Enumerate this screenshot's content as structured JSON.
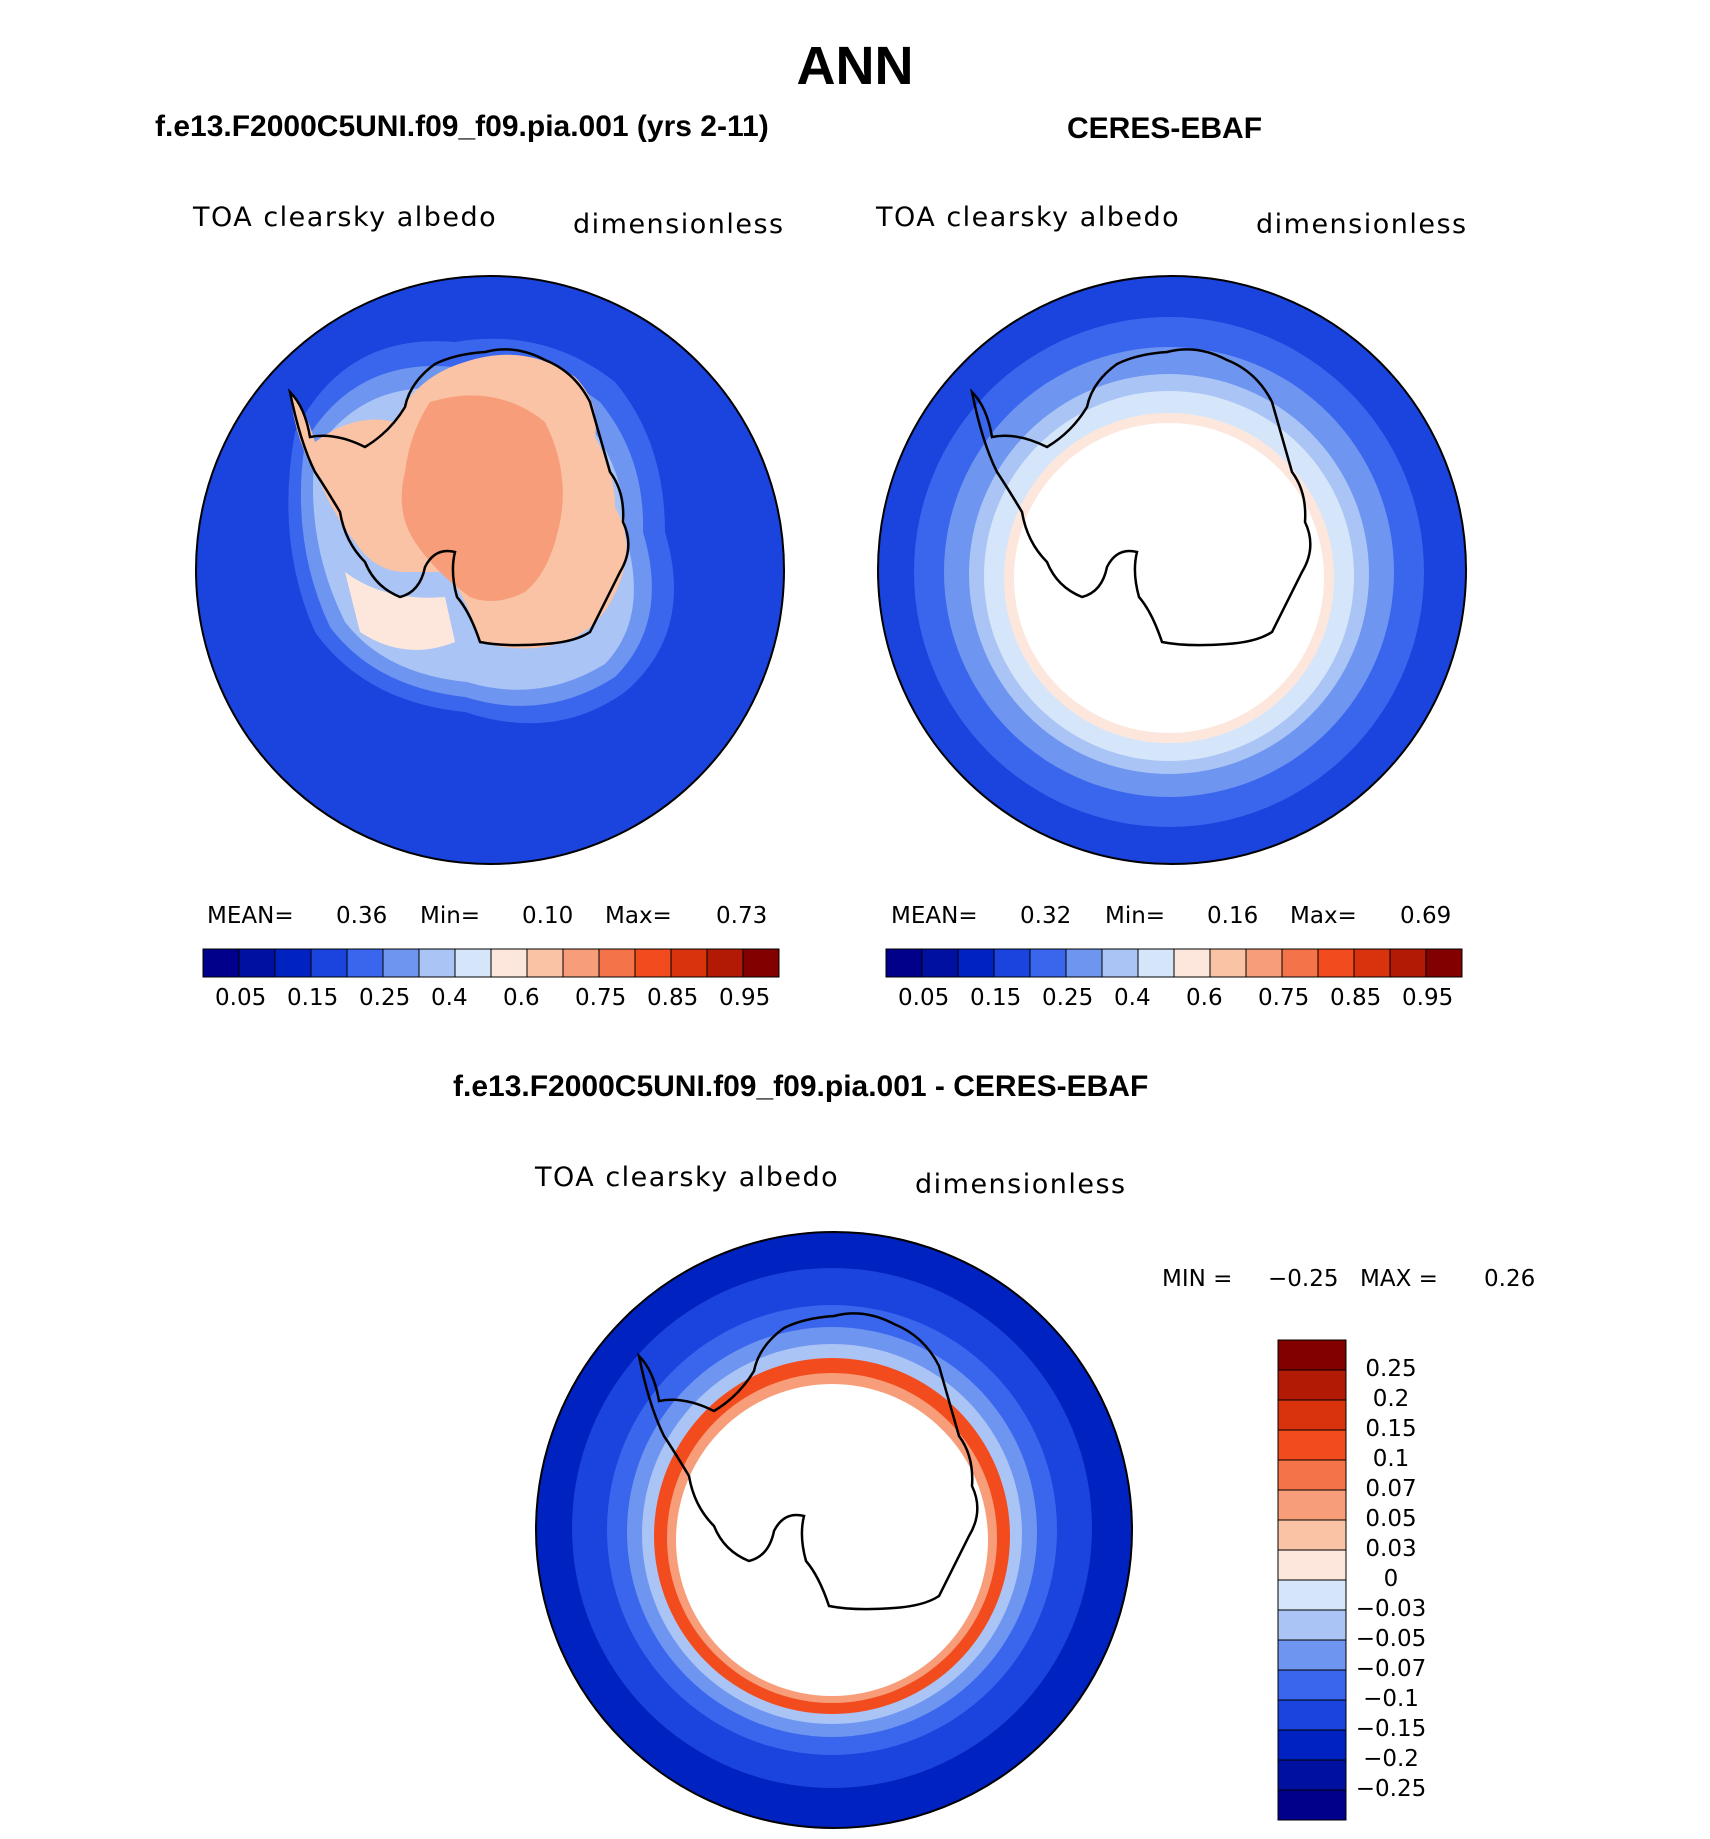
{
  "title": "ANN",
  "panels": [
    {
      "case_title": "f.e13.F2000C5UNI.f09_f09.pia.001 (yrs 2-11)",
      "variable": "TOA clearsky albedo",
      "units": "dimensionless",
      "stats": {
        "mean_label": "MEAN=",
        "mean": "0.36",
        "min_label": "Min=",
        "min": "0.10",
        "max_label": "Max=",
        "max": "0.73"
      }
    },
    {
      "case_title": "CERES-EBAF",
      "variable": "TOA clearsky albedo",
      "units": "dimensionless",
      "stats": {
        "mean_label": "MEAN=",
        "mean": "0.32",
        "min_label": "Min=",
        "min": "0.16",
        "max_label": "Max=",
        "max": "0.69"
      }
    }
  ],
  "field_colorbar": {
    "colors": [
      "#00008b",
      "#0010a0",
      "#0022c0",
      "#1a44dd",
      "#3a66ee",
      "#6e95f0",
      "#a9c4f5",
      "#d6e6fa",
      "#fde7dd",
      "#fbc3a6",
      "#f79d79",
      "#f57348",
      "#f24c1e",
      "#d8330c",
      "#b21a05",
      "#820000"
    ],
    "tick_labels": [
      "0.05",
      "0.15",
      "0.25",
      "0.4",
      "0.6",
      "0.75",
      "0.85",
      "0.95"
    ]
  },
  "diff_panel": {
    "case_title": "f.e13.F2000C5UNI.f09_f09.pia.001 - CERES-EBAF",
    "variable": "TOA clearsky albedo",
    "units": "dimensionless",
    "stats": {
      "min_label": "MIN =",
      "min": "−0.25",
      "max_label": "MAX =",
      "max": "0.26"
    }
  },
  "diff_colorbar": {
    "colors_top_to_bottom": [
      "#820000",
      "#b21a05",
      "#d8330c",
      "#f24c1e",
      "#f57348",
      "#f79d79",
      "#fbc3a6",
      "#fde7dd",
      "#d6e6fa",
      "#a9c4f5",
      "#6e95f0",
      "#3a66ee",
      "#1a44dd",
      "#0022c0",
      "#0010a0",
      "#00008b"
    ],
    "tick_labels": [
      "0.25",
      "0.2",
      "0.15",
      "0.1",
      "0.07",
      "0.05",
      "0.03",
      "0",
      "−0.03",
      "−0.05",
      "−0.07",
      "−0.1",
      "−0.15",
      "−0.2",
      "−0.25"
    ]
  },
  "map_colors": {
    "ocean": "#1a44dd",
    "ocean_deep": "#0022c0",
    "mid_blue": "#3a66ee",
    "light_blue": "#6e95f0",
    "pale_blue": "#a9c4f5",
    "very_pale_blue": "#d6e6fa",
    "peach": "#fbc3a6",
    "pale_peach": "#fde7dd",
    "salmon": "#f79d79",
    "orange_red": "#f24c1e",
    "white": "#ffffff",
    "coast": "#000000"
  }
}
